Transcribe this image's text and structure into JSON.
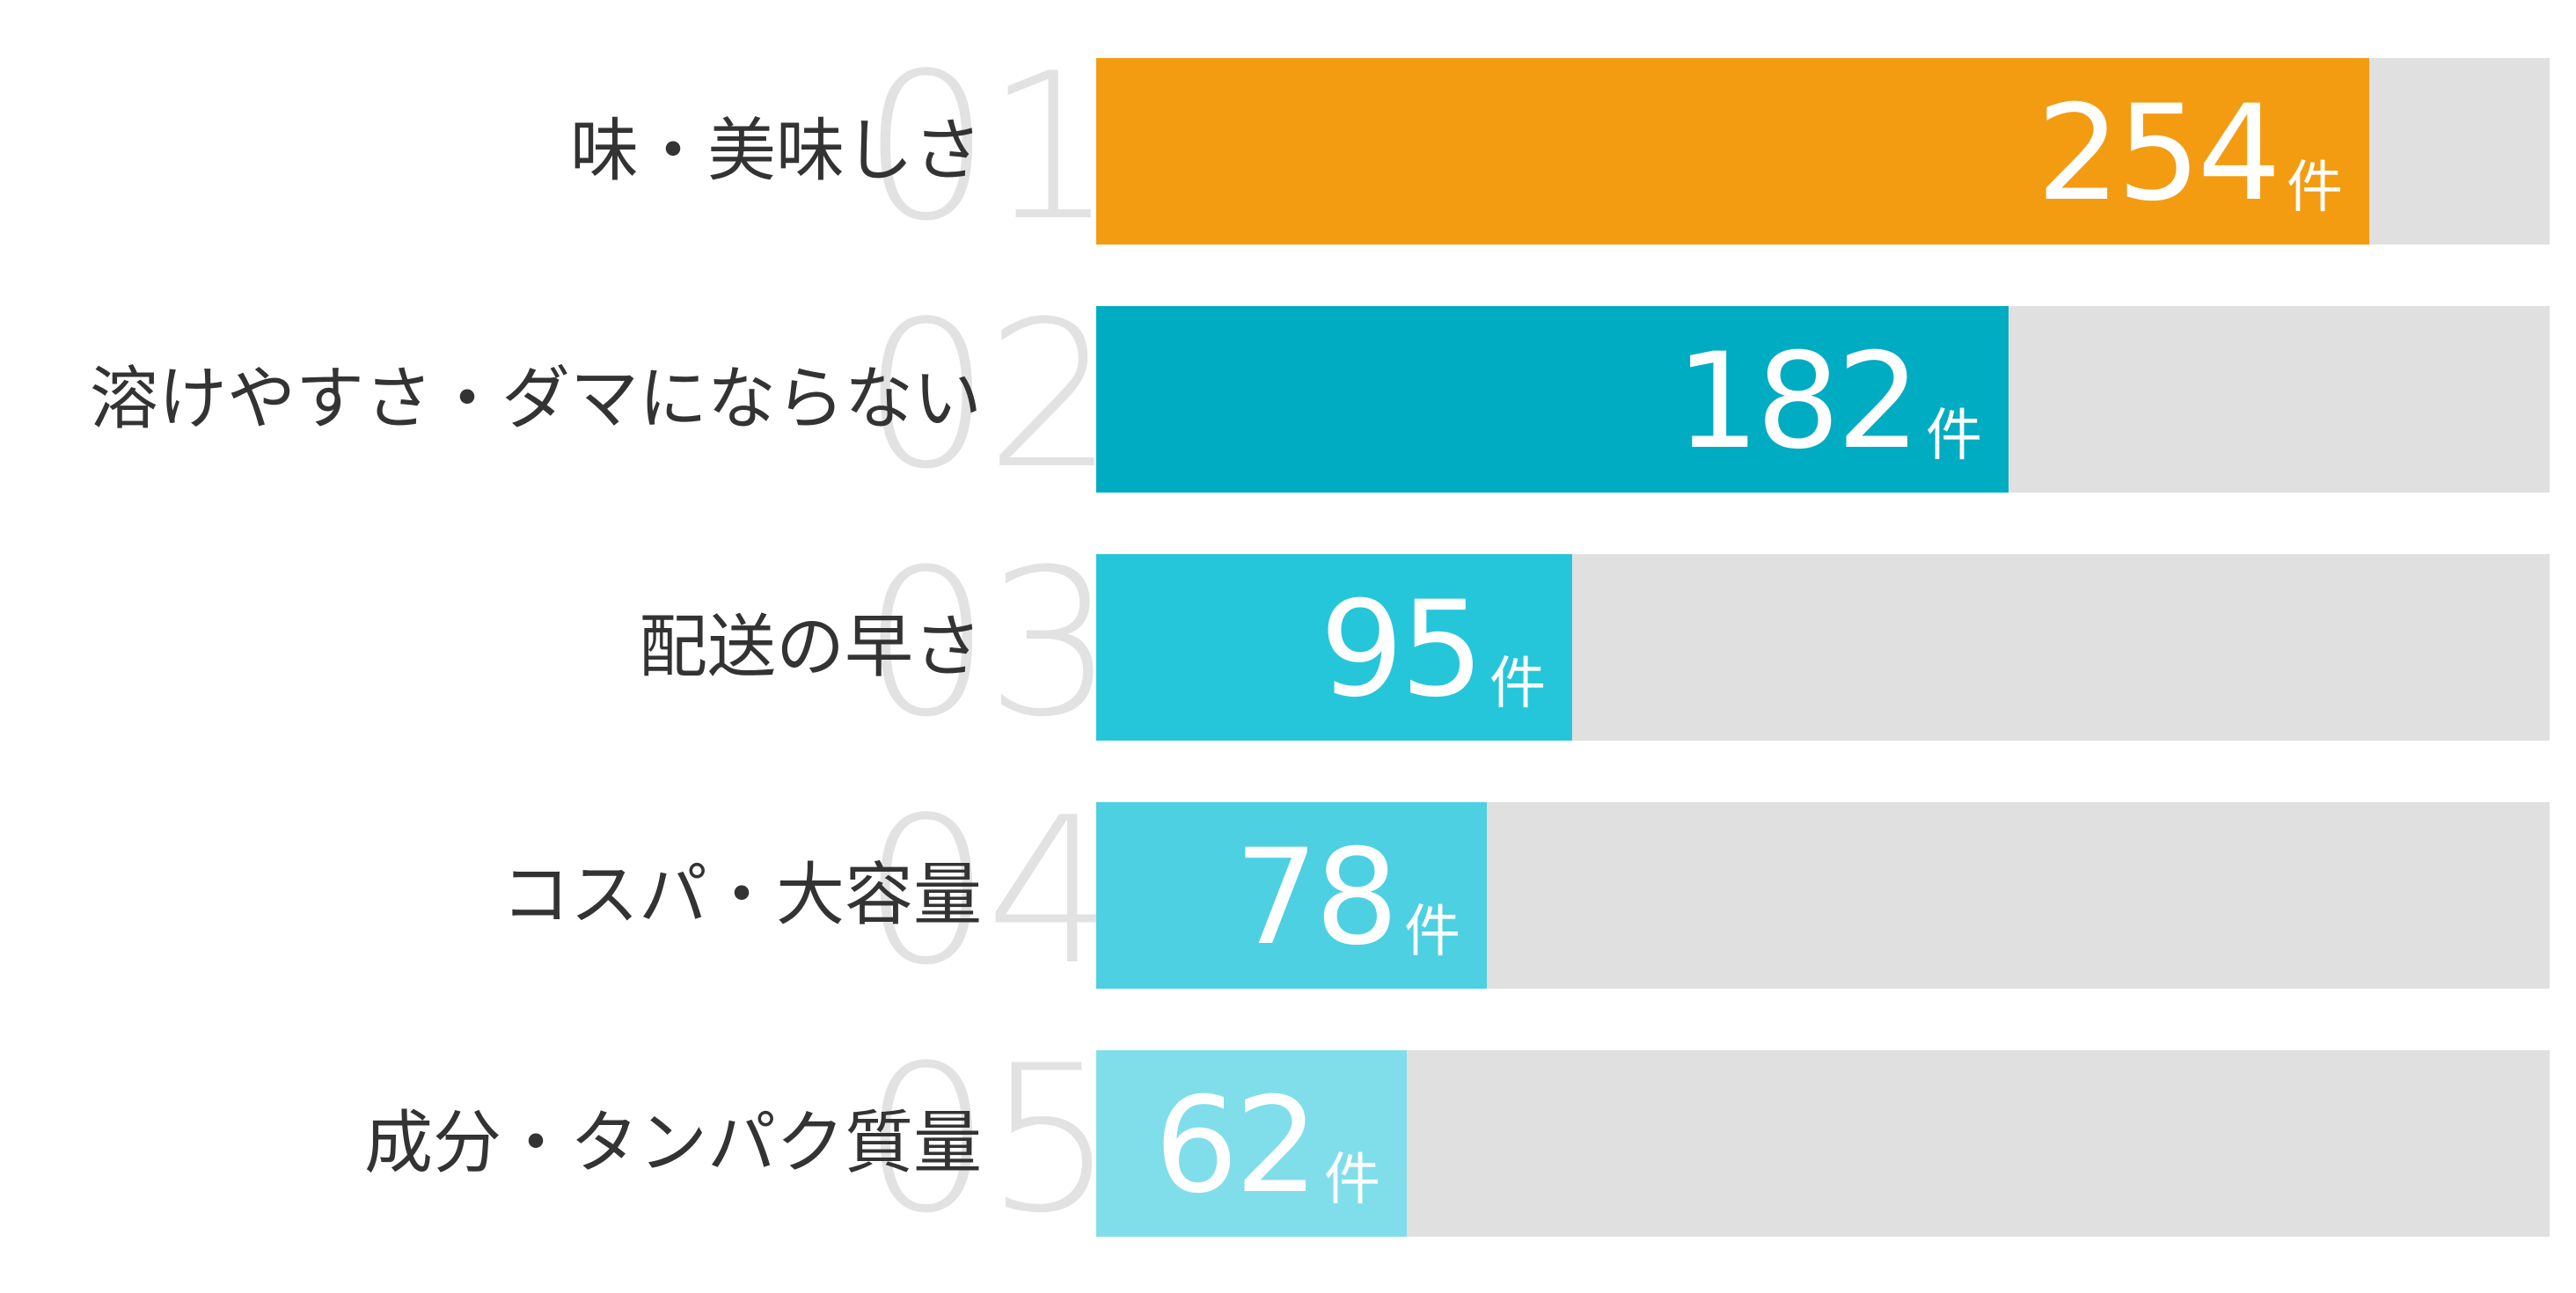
{
  "chart_data": {
    "type": "bar",
    "orientation": "horizontal",
    "max": 290,
    "unit": "件",
    "track_color": "#e0e0e0",
    "rank_color": "#e2e2e2",
    "categories": [
      "味・美味しさ",
      "溶けやすさ・ダマにならない",
      "配送の早さ",
      "コスパ・大容量",
      "成分・タンパク質量"
    ],
    "ranks": [
      "01",
      "02",
      "03",
      "04",
      "05"
    ],
    "values": [
      254,
      182,
      95,
      78,
      62
    ],
    "colors": [
      "#f39c12",
      "#00acc1",
      "#26c6da",
      "#4dd0e1",
      "#80deea"
    ]
  }
}
